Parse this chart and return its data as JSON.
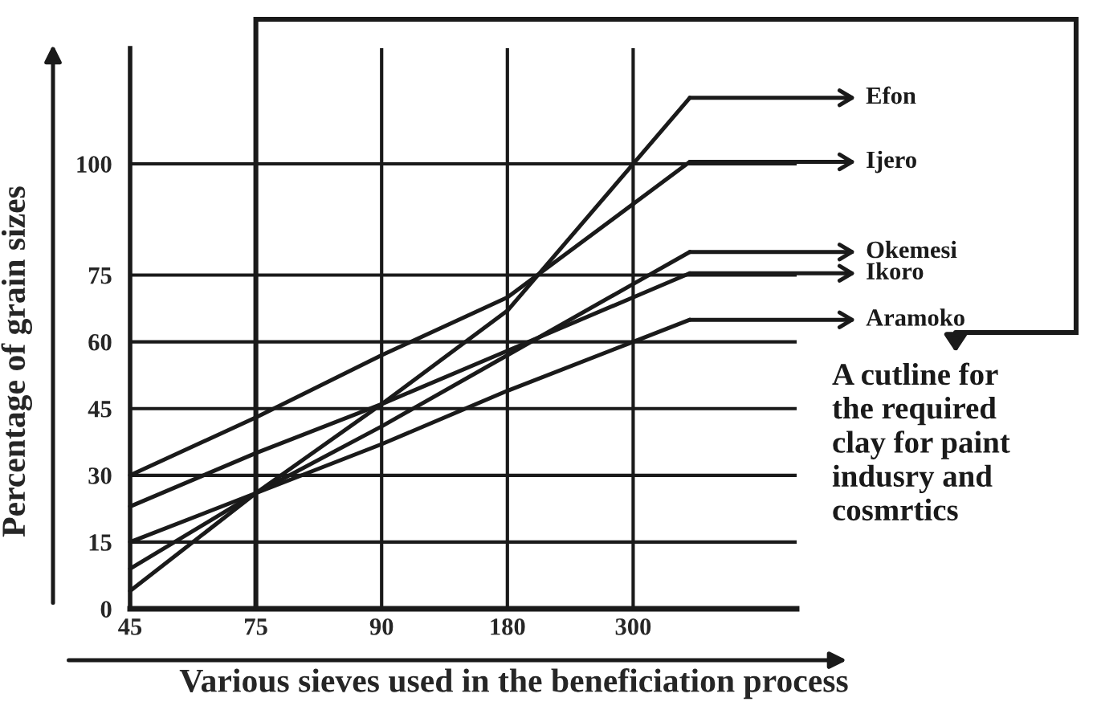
{
  "chart_data": {
    "type": "line",
    "xlabel": "Various sieves used in the beneficiation process",
    "ylabel": "Percentage of grain sizes",
    "categories": [
      "45",
      "75",
      "90",
      "180",
      "300"
    ],
    "series": [
      {
        "name": "Efon",
        "color": "#1a1a1a",
        "values": [
          4,
          26,
          46,
          67,
          100
        ]
      },
      {
        "name": "Ijero",
        "color": "#1a1a1a",
        "values": [
          30,
          43,
          57,
          70,
          91
        ]
      },
      {
        "name": "Okemesi",
        "color": "#1a1a1a",
        "values": [
          9,
          26,
          41,
          57,
          73
        ]
      },
      {
        "name": "Ikoro",
        "color": "#1a1a1a",
        "values": [
          23,
          35,
          46,
          58,
          70
        ]
      },
      {
        "name": "Aramoko",
        "color": "#1a1a1a",
        "values": [
          15,
          26,
          37,
          49,
          60
        ]
      }
    ],
    "ylim": [
      0,
      126
    ],
    "yticks": [
      0,
      15,
      30,
      45,
      60,
      75,
      100
    ],
    "grid": true,
    "legend": "right",
    "marker": "none",
    "line_style": "solid",
    "annotations": [
      "A cutline for\nthe required\nclay for paint\nindusry and\ncosmrtics"
    ]
  }
}
